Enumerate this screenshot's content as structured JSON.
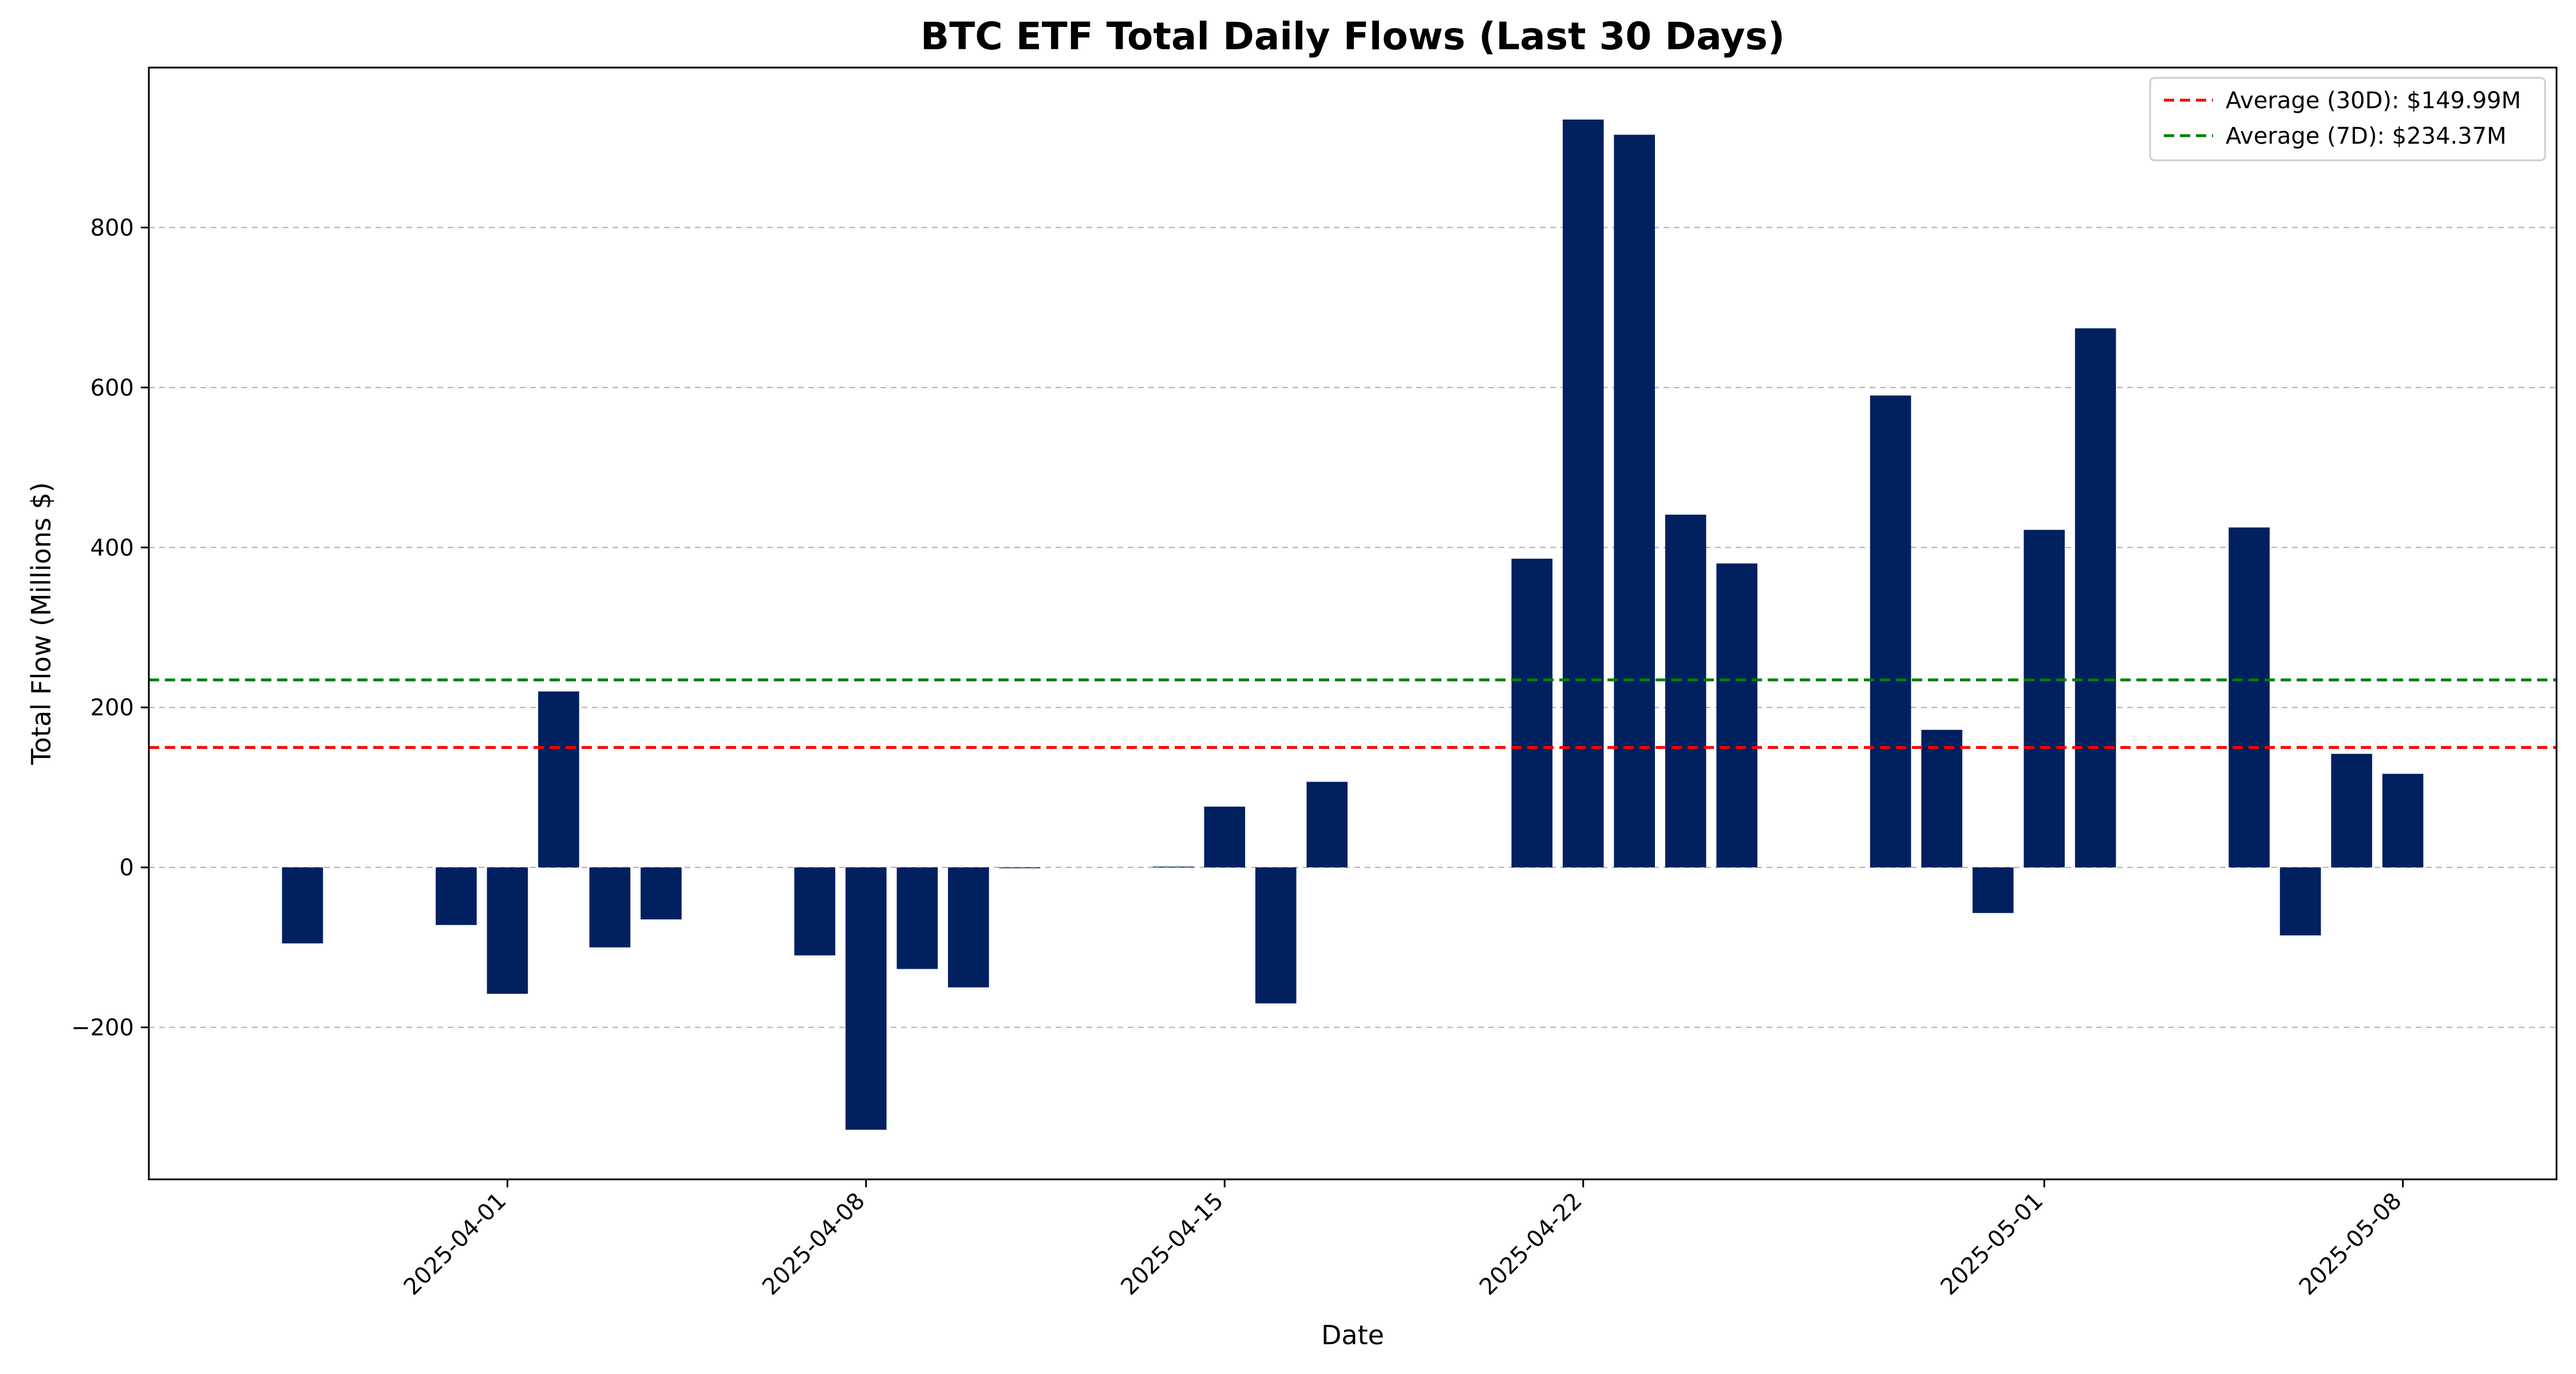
{
  "chart_data": {
    "type": "bar",
    "title": "BTC ETF Total Daily Flows (Last 30 Days)",
    "xlabel": "Date",
    "ylabel": "Total Flow (Millions $)",
    "ylim": [
      -390,
      1000
    ],
    "yticks": [
      -200,
      0,
      200,
      400,
      600,
      800
    ],
    "y_tick_labels": [
      "−200",
      "0",
      "200",
      "400",
      "600",
      "800"
    ],
    "x_tick_dates": [
      "2025-04-01",
      "2025-04-08",
      "2025-04-15",
      "2025-04-22",
      "2025-05-01",
      "2025-05-08"
    ],
    "x_range": [
      "2025-03-25",
      "2025-05-11"
    ],
    "grid": "y-dashed",
    "legend_position": "top-right",
    "bar_color": "#002060",
    "x": [
      "2025-03-28",
      "2025-03-31",
      "2025-04-01",
      "2025-04-02",
      "2025-04-03",
      "2025-04-04",
      "2025-04-07",
      "2025-04-08",
      "2025-04-09",
      "2025-04-10",
      "2025-04-11",
      "2025-04-14",
      "2025-04-15",
      "2025-04-16",
      "2025-04-17",
      "2025-04-21",
      "2025-04-22",
      "2025-04-23",
      "2025-04-24",
      "2025-04-25",
      "2025-04-28",
      "2025-04-29",
      "2025-04-30",
      "2025-05-01",
      "2025-05-02",
      "2025-05-05",
      "2025-05-06",
      "2025-05-07",
      "2025-05-08"
    ],
    "values": [
      -95,
      -72,
      -158,
      220,
      -100,
      -65,
      -110,
      -328,
      -127,
      -150,
      -1,
      1,
      76,
      -170,
      107,
      386,
      935,
      916,
      441,
      380,
      590,
      172,
      -57,
      422,
      674,
      425,
      -85,
      142,
      117
    ],
    "reference_lines": [
      {
        "label": "Average (30D): $149.99M",
        "value": 149.99,
        "color": "#ff0000"
      },
      {
        "label": "Average (7D): $234.37M",
        "value": 234.37,
        "color": "#008000"
      }
    ]
  }
}
